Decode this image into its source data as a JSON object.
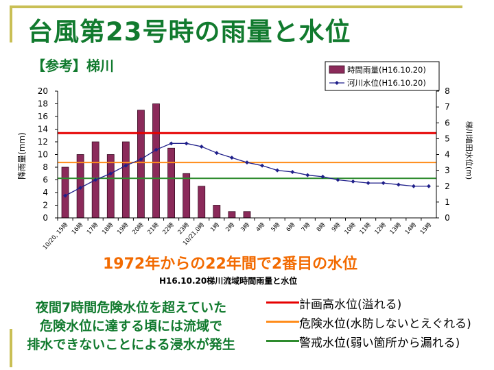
{
  "slide": {
    "title": "台風第23号時の雨量と水位",
    "subtitle": "【参考】梯川",
    "note": "1972年からの22年間で2番目の水位",
    "caption": "H16.10.20梯川流域時間雨量と水位",
    "description_lines": [
      "夜間7時間危険水位を超えていた",
      "危険水位に達する頃には流域で",
      "排水できないことによる浸水が発生"
    ]
  },
  "colors": {
    "title": "#117a2e",
    "note": "#f26a00",
    "bar": "#8b2a5a",
    "river_line": "#1f1f8a",
    "plan_level": "#e60000",
    "danger_level": "#ff8c1a",
    "warning_level": "#2e8b2e"
  },
  "chart_data": {
    "type": "bar",
    "categories": [
      "10/20, 15時",
      "16時",
      "17時",
      "18時",
      "19時",
      "20時",
      "21時",
      "22時",
      "23時",
      "10/21,0時",
      "1時",
      "2時",
      "3時",
      "4時",
      "5時",
      "6時",
      "7時",
      "8時",
      "9時",
      "10時",
      "11時",
      "12時",
      "13時",
      "14時",
      "15時"
    ],
    "ylabel": "降雨量(mm)",
    "y2label": "梯川埴田水位(m)",
    "ylim": [
      0,
      20
    ],
    "yticks": [
      0,
      2,
      4,
      6,
      8,
      10,
      12,
      14,
      16,
      18,
      20
    ],
    "y2lim": [
      0,
      8
    ],
    "y2ticks": [
      0,
      1,
      2,
      3,
      4,
      5,
      6,
      7,
      8
    ],
    "legend_position": "top-right",
    "series": [
      {
        "name": "時間雨量(H16.10.20)",
        "type": "bar",
        "axis": "left",
        "values": [
          8,
          10,
          12,
          10,
          12,
          17,
          18,
          11,
          7,
          5,
          2,
          1,
          1,
          0,
          0,
          0,
          0,
          0,
          0,
          0,
          0,
          0,
          0,
          0,
          0
        ]
      },
      {
        "name": "河川水位(H16.10.20)",
        "type": "line",
        "axis": "right",
        "values": [
          1.4,
          1.9,
          2.4,
          2.8,
          3.3,
          3.7,
          4.3,
          4.7,
          4.7,
          4.5,
          4.1,
          3.8,
          3.5,
          3.3,
          3.0,
          2.9,
          2.7,
          2.6,
          2.4,
          2.3,
          2.2,
          2.2,
          2.1,
          2.0,
          2.0
        ]
      }
    ],
    "reference_lines": [
      {
        "label": "計画高水位(溢れる)",
        "axis": "right",
        "value": 5.35,
        "color": "#e60000"
      },
      {
        "label": "危険水位(水防しないとえぐれる)",
        "axis": "right",
        "value": 3.5,
        "color": "#ff8c1a"
      },
      {
        "label": "警戒水位(弱い箇所から漏れる)",
        "axis": "right",
        "value": 2.5,
        "color": "#2e8b2e"
      }
    ]
  }
}
